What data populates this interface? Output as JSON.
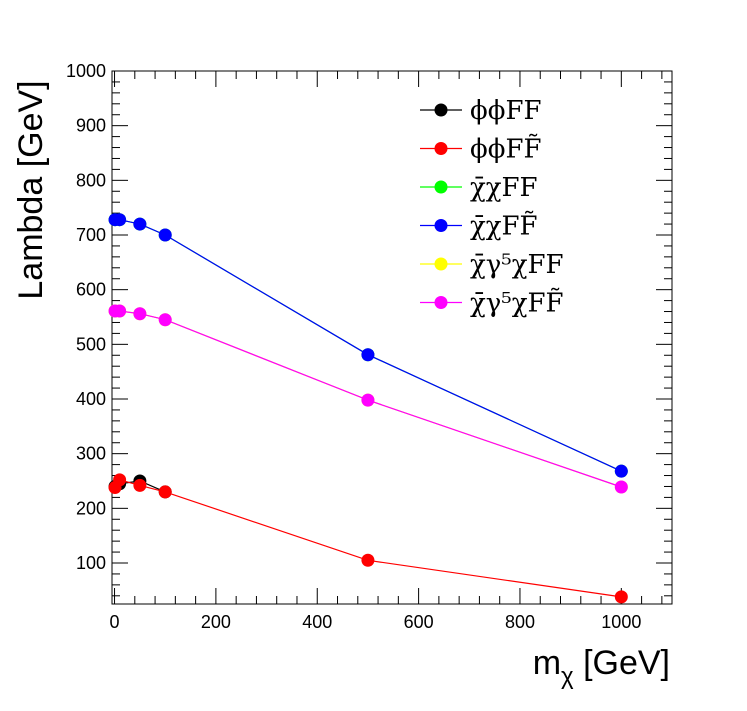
{
  "chart_data": {
    "type": "line",
    "xlabel": "m",
    "xlabel_sub": "χ",
    "xlabel_unit": " [GeV]",
    "ylabel": "Lambda [GeV]",
    "xlim": [
      -5,
      1100
    ],
    "ylim": [
      25,
      1000
    ],
    "xticks": [
      0,
      200,
      400,
      600,
      800,
      1000
    ],
    "yticks": [
      100,
      200,
      300,
      400,
      500,
      600,
      700,
      800,
      900,
      1000
    ],
    "grid": false,
    "legend_position": "top-right",
    "series": [
      {
        "name": "ϕϕFF",
        "color": "#000000",
        "x": [
          1,
          10,
          50,
          100
        ],
        "y": [
          240,
          245,
          250,
          230
        ]
      },
      {
        "name": "ϕϕFF̃",
        "color": "#ff0000",
        "x": [
          1,
          10,
          50,
          100,
          500,
          1000
        ],
        "y": [
          238,
          252,
          242,
          230,
          105,
          38
        ]
      },
      {
        "name": "χ̄χFF",
        "color": "#00ff00",
        "x": [
          1,
          10,
          50,
          100,
          500,
          1000
        ],
        "y": [
          728,
          728,
          720,
          700,
          481,
          268
        ]
      },
      {
        "name": "χ̄χFF̃",
        "color": "#0000ff",
        "x": [
          1,
          10,
          50,
          100,
          500,
          1000
        ],
        "y": [
          728,
          728,
          720,
          700,
          481,
          268
        ]
      },
      {
        "name": "χ̄γ⁵χFF",
        "color": "#ffff00",
        "x": [
          1,
          10,
          50,
          100,
          500,
          1000
        ],
        "y": [
          561,
          561,
          556,
          545,
          398,
          239
        ]
      },
      {
        "name": "χ̄γ⁵χFF̃",
        "color": "#ff00ff",
        "x": [
          1,
          10,
          50,
          100,
          500,
          1000
        ],
        "y": [
          561,
          561,
          556,
          545,
          398,
          239
        ]
      }
    ]
  }
}
